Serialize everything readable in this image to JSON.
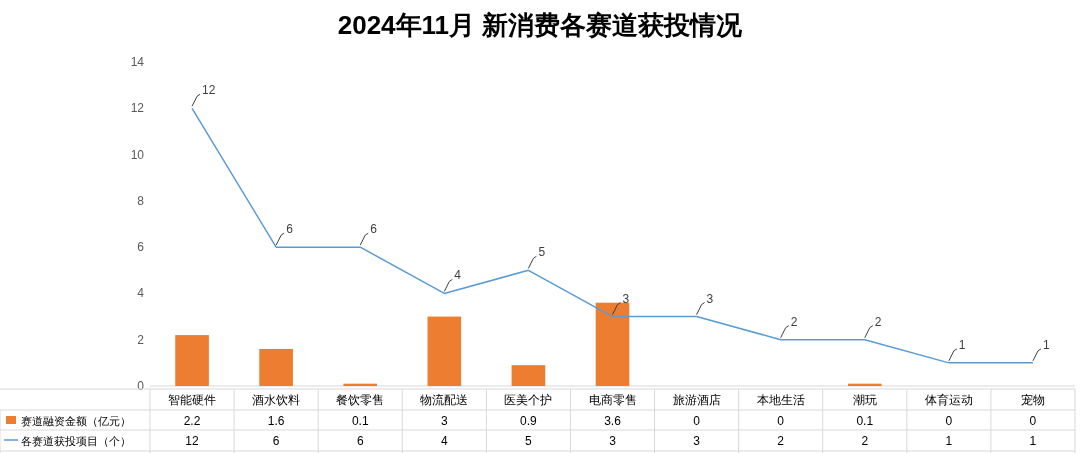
{
  "chart_data": {
    "type": "bar",
    "title": "2024年11月 新消费各赛道获投情况",
    "categories": [
      "智能硬件",
      "酒水饮料",
      "餐饮零售",
      "物流配送",
      "医美个护",
      "电商零售",
      "旅游酒店",
      "本地生活",
      "潮玩",
      "体育运动",
      "宠物"
    ],
    "series": [
      {
        "name": "赛道融资金额（亿元）",
        "color": "#ed7d31",
        "values": [
          2.2,
          1.6,
          0.1,
          3,
          0.9,
          3.6,
          0,
          0,
          0.1,
          0,
          0
        ]
      },
      {
        "name": "各赛道获投项目（个）",
        "type": "line",
        "color": "#5b9bd5",
        "values": [
          12,
          6,
          6,
          4,
          5,
          3,
          3,
          2,
          2,
          1,
          1
        ]
      }
    ],
    "annotations": [
      {
        "text": "12",
        "x": "智能硬件",
        "y": 12
      },
      {
        "text": "6",
        "x": "酒水饮料",
        "y": 6
      },
      {
        "text": "6",
        "x": "餐饮零售",
        "y": 6
      },
      {
        "text": "4",
        "x": "物流配送",
        "y": 4
      },
      {
        "text": "5",
        "x": "医美个护",
        "y": 5
      },
      {
        "text": "3",
        "x": "电商零售",
        "y": 3
      },
      {
        "text": "3",
        "x": "旅游酒店",
        "y": 3
      },
      {
        "text": "2",
        "x": "本地生活",
        "y": 2
      },
      {
        "text": "2",
        "x": "潮玩",
        "y": 2
      },
      {
        "text": "1",
        "x": "体育运动",
        "y": 1
      },
      {
        "text": "1",
        "x": "宠物",
        "y": 1
      }
    ],
    "ylim": [
      0,
      14
    ],
    "yticks": [
      0,
      2,
      4,
      6,
      8,
      10,
      12,
      14
    ],
    "data_labels": true,
    "legend": "bottom"
  }
}
